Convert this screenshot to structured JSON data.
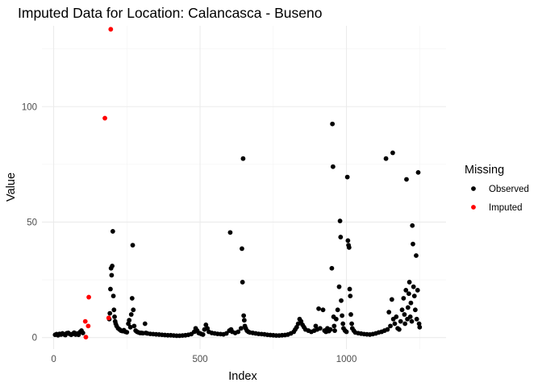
{
  "chart_data": {
    "type": "scatter",
    "title": "Imputed Data for Location: Calancasca - Buseno",
    "xlabel": "Index",
    "ylabel": "Value",
    "xlim": [
      -40,
      1340
    ],
    "ylim": [
      -5,
      135
    ],
    "x_ticks": [
      0,
      500,
      1000
    ],
    "y_ticks": [
      0,
      50,
      100
    ],
    "grid": true,
    "legend": {
      "title": "Missing",
      "placement": "right"
    },
    "series": [
      {
        "name": "Observed",
        "color": "#000000",
        "points": [
          [
            5,
            1.2
          ],
          [
            10,
            1.5
          ],
          [
            15,
            1.0
          ],
          [
            20,
            1.6
          ],
          [
            25,
            1.3
          ],
          [
            30,
            1.8
          ],
          [
            35,
            1.4
          ],
          [
            40,
            1.1
          ],
          [
            45,
            1.9
          ],
          [
            50,
            2.0
          ],
          [
            55,
            1.5
          ],
          [
            60,
            1.2
          ],
          [
            65,
            1.6
          ],
          [
            70,
            2.1
          ],
          [
            75,
            1.3
          ],
          [
            80,
            1.7
          ],
          [
            85,
            1.2
          ],
          [
            90,
            2.4
          ],
          [
            95,
            3.0
          ],
          [
            100,
            2.0
          ],
          [
            190,
            8.0
          ],
          [
            192,
            10.5
          ],
          [
            194,
            21.0
          ],
          [
            196,
            30.0
          ],
          [
            198,
            27.0
          ],
          [
            200,
            31.0
          ],
          [
            202,
            46.0
          ],
          [
            204,
            18.0
          ],
          [
            206,
            12.0
          ],
          [
            208,
            9.0
          ],
          [
            210,
            7.0
          ],
          [
            212,
            6.0
          ],
          [
            215,
            5.0
          ],
          [
            220,
            4.0
          ],
          [
            225,
            3.5
          ],
          [
            230,
            3.0
          ],
          [
            235,
            2.8
          ],
          [
            240,
            3.2
          ],
          [
            245,
            2.5
          ],
          [
            250,
            2.3
          ],
          [
            255,
            6.0
          ],
          [
            258,
            7.5
          ],
          [
            262,
            4.5
          ],
          [
            265,
            10.0
          ],
          [
            268,
            17.0
          ],
          [
            270,
            40.0
          ],
          [
            272,
            12.0
          ],
          [
            275,
            5.0
          ],
          [
            280,
            3.0
          ],
          [
            285,
            2.5
          ],
          [
            290,
            2.2
          ],
          [
            295,
            2.0
          ],
          [
            300,
            2.0
          ],
          [
            305,
            1.9
          ],
          [
            312,
            6.0
          ],
          [
            315,
            2.0
          ],
          [
            320,
            1.8
          ],
          [
            330,
            1.6
          ],
          [
            340,
            1.5
          ],
          [
            350,
            1.4
          ],
          [
            360,
            1.3
          ],
          [
            370,
            1.2
          ],
          [
            380,
            1.1
          ],
          [
            390,
            1.0
          ],
          [
            400,
            1.0
          ],
          [
            410,
            0.9
          ],
          [
            420,
            0.8
          ],
          [
            430,
            0.8
          ],
          [
            440,
            0.9
          ],
          [
            450,
            1.0
          ],
          [
            460,
            1.2
          ],
          [
            470,
            1.5
          ],
          [
            480,
            2.5
          ],
          [
            485,
            4.0
          ],
          [
            490,
            3.0
          ],
          [
            495,
            2.0
          ],
          [
            500,
            1.8
          ],
          [
            505,
            1.5
          ],
          [
            510,
            1.3
          ],
          [
            515,
            3.5
          ],
          [
            520,
            5.5
          ],
          [
            525,
            4.0
          ],
          [
            530,
            2.5
          ],
          [
            540,
            2.0
          ],
          [
            550,
            1.8
          ],
          [
            560,
            1.6
          ],
          [
            570,
            1.5
          ],
          [
            580,
            1.4
          ],
          [
            590,
            1.8
          ],
          [
            600,
            3.0
          ],
          [
            603,
            45.5
          ],
          [
            606,
            3.5
          ],
          [
            610,
            2.5
          ],
          [
            620,
            2.0
          ],
          [
            630,
            2.5
          ],
          [
            640,
            4.0
          ],
          [
            643,
            38.5
          ],
          [
            645,
            24.0
          ],
          [
            647,
            77.5
          ],
          [
            649,
            9.5
          ],
          [
            651,
            7.5
          ],
          [
            653,
            5.0
          ],
          [
            656,
            4.0
          ],
          [
            660,
            3.0
          ],
          [
            665,
            2.5
          ],
          [
            670,
            2.2
          ],
          [
            680,
            2.0
          ],
          [
            690,
            1.8
          ],
          [
            700,
            1.6
          ],
          [
            710,
            1.5
          ],
          [
            720,
            1.4
          ],
          [
            730,
            1.2
          ],
          [
            740,
            1.1
          ],
          [
            750,
            1.0
          ],
          [
            760,
            0.9
          ],
          [
            770,
            0.9
          ],
          [
            780,
            1.0
          ],
          [
            790,
            1.1
          ],
          [
            800,
            1.3
          ],
          [
            810,
            1.8
          ],
          [
            820,
            2.5
          ],
          [
            825,
            3.5
          ],
          [
            830,
            4.5
          ],
          [
            835,
            6.0
          ],
          [
            840,
            8.0
          ],
          [
            845,
            7.0
          ],
          [
            850,
            5.5
          ],
          [
            855,
            4.5
          ],
          [
            860,
            3.5
          ],
          [
            870,
            3.0
          ],
          [
            880,
            2.5
          ],
          [
            890,
            3.0
          ],
          [
            895,
            5.0
          ],
          [
            900,
            3.5
          ],
          [
            905,
            12.5
          ],
          [
            910,
            4.0
          ],
          [
            920,
            12.0
          ],
          [
            925,
            3.0
          ],
          [
            930,
            2.5
          ],
          [
            935,
            4.0
          ],
          [
            940,
            2.8
          ],
          [
            945,
            3.5
          ],
          [
            950,
            30.0
          ],
          [
            952,
            92.5
          ],
          [
            954,
            74.0
          ],
          [
            956,
            9.0
          ],
          [
            958,
            5.0
          ],
          [
            960,
            3.0
          ],
          [
            965,
            8.0
          ],
          [
            970,
            12.0
          ],
          [
            975,
            22.0
          ],
          [
            978,
            50.5
          ],
          [
            980,
            43.5
          ],
          [
            982,
            16.0
          ],
          [
            985,
            9.5
          ],
          [
            988,
            6.0
          ],
          [
            990,
            4.0
          ],
          [
            995,
            3.0
          ],
          [
            1000,
            2.5
          ],
          [
            1003,
            69.5
          ],
          [
            1005,
            42.0
          ],
          [
            1007,
            40.0
          ],
          [
            1009,
            39.0
          ],
          [
            1011,
            21.0
          ],
          [
            1013,
            18.0
          ],
          [
            1015,
            10.0
          ],
          [
            1018,
            6.0
          ],
          [
            1020,
            4.0
          ],
          [
            1025,
            3.0
          ],
          [
            1030,
            2.2
          ],
          [
            1040,
            1.9
          ],
          [
            1050,
            1.7
          ],
          [
            1060,
            1.5
          ],
          [
            1070,
            1.4
          ],
          [
            1080,
            1.3
          ],
          [
            1090,
            1.5
          ],
          [
            1100,
            1.8
          ],
          [
            1110,
            2.2
          ],
          [
            1120,
            2.5
          ],
          [
            1130,
            3.0
          ],
          [
            1135,
            77.5
          ],
          [
            1140,
            3.5
          ],
          [
            1145,
            11.0
          ],
          [
            1150,
            5.0
          ],
          [
            1155,
            16.5
          ],
          [
            1158,
            80.0
          ],
          [
            1160,
            8.0
          ],
          [
            1165,
            6.0
          ],
          [
            1170,
            9.0
          ],
          [
            1175,
            4.0
          ],
          [
            1180,
            3.5
          ],
          [
            1185,
            7.0
          ],
          [
            1190,
            12.0
          ],
          [
            1195,
            17.0
          ],
          [
            1198,
            10.0
          ],
          [
            1200,
            6.0
          ],
          [
            1203,
            20.5
          ],
          [
            1205,
            68.5
          ],
          [
            1208,
            8.0
          ],
          [
            1210,
            13.0
          ],
          [
            1213,
            19.0
          ],
          [
            1215,
            24.0
          ],
          [
            1218,
            9.0
          ],
          [
            1220,
            15.0
          ],
          [
            1223,
            7.0
          ],
          [
            1225,
            48.5
          ],
          [
            1227,
            40.5
          ],
          [
            1229,
            22.0
          ],
          [
            1232,
            18.0
          ],
          [
            1235,
            12.0
          ],
          [
            1238,
            35.5
          ],
          [
            1240,
            8.0
          ],
          [
            1243,
            20.5
          ],
          [
            1245,
            71.5
          ],
          [
            1248,
            6.0
          ],
          [
            1250,
            4.5
          ]
        ]
      },
      {
        "name": "Imputed",
        "color": "#ff0000",
        "points": [
          [
            108,
            7.0
          ],
          [
            110,
            0.2
          ],
          [
            118,
            5.0
          ],
          [
            120,
            17.5
          ],
          [
            175,
            95.0
          ],
          [
            188,
            8.5
          ],
          [
            195,
            133.5
          ]
        ]
      }
    ]
  }
}
